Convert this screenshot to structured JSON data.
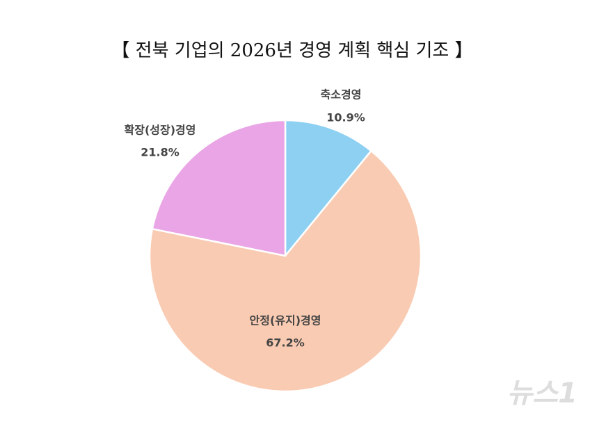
{
  "chart_data": {
    "type": "pie",
    "title": "【 전북 기업의 2026년 경영 계획 핵심 기조 】",
    "categories": [
      "축소경영",
      "안정(유지)경영",
      "확장(성장)경영"
    ],
    "values": [
      10.9,
      67.2,
      21.8
    ],
    "value_labels": [
      "10.9%",
      "67.2%",
      "21.8%"
    ],
    "colors": [
      "#8dd0f2",
      "#f9cbb2",
      "#e9a5e5"
    ],
    "watermark": "뉴스1"
  }
}
